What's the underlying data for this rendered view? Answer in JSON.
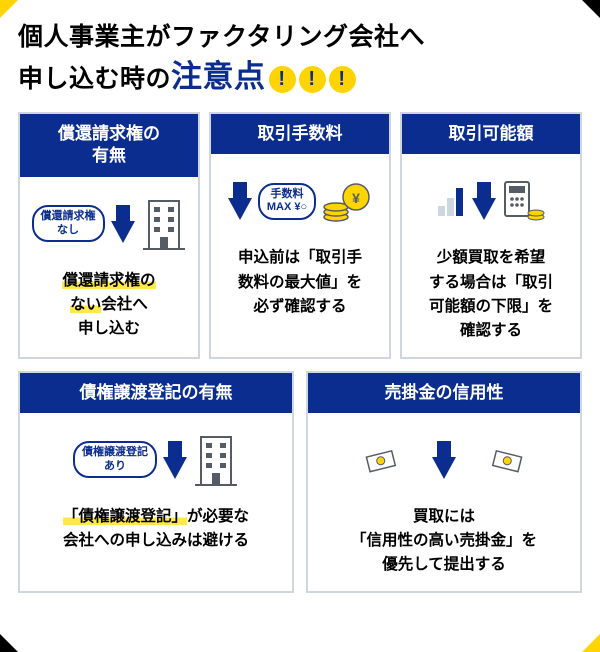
{
  "title": {
    "line1_a": "個人事業主",
    "line1_b": "がファクタリング会社へ",
    "line2_a": "申し込む時の",
    "em": "注意点"
  },
  "colors": {
    "navy": "#0a2d8f",
    "yellow": "#ffd400",
    "highlight": "#ffe94a",
    "border": "#d0d6e0",
    "icon_gray": "#555c66"
  },
  "cards_row1": [
    {
      "head": "償還請求権の\n有無",
      "badge": "償還請求権\nなし",
      "desc_parts": [
        {
          "t": "償還請求権の",
          "hl": true
        },
        {
          "t": "\n"
        },
        {
          "t": "ない",
          "hl": true
        },
        {
          "t": "会社へ\n申し込む"
        }
      ]
    },
    {
      "head": "取引手数料",
      "badge": "手数料\nMAX ¥○",
      "desc_parts": [
        {
          "t": "申込前は"
        },
        {
          "t": "「取引手",
          "q": true
        },
        {
          "t": "\n"
        },
        {
          "t": "数料の最大値」",
          "q": true
        },
        {
          "t": "を\n必ず確認する"
        }
      ]
    },
    {
      "head": "取引可能額",
      "desc_parts": [
        {
          "t": "少額買取を希望\nする場合は"
        },
        {
          "t": "「取引",
          "q": true
        },
        {
          "t": "\n"
        },
        {
          "t": "可能額の下限」",
          "q": true
        },
        {
          "t": "を\n確認する"
        }
      ]
    }
  ],
  "cards_row2": [
    {
      "head": "債権譲渡登記の有無",
      "badge": "債権譲渡登記\nあり",
      "desc_parts": [
        {
          "t": "「債権譲渡登記」",
          "q": true,
          "hl": true
        },
        {
          "t": "が必要な\n会社への申し込みは避ける"
        }
      ]
    },
    {
      "head": "売掛金の信用性",
      "desc_parts": [
        {
          "t": "買取には\n"
        },
        {
          "t": "「信用性の高い売掛金」",
          "q": true
        },
        {
          "t": "を\n優先して提出する"
        }
      ]
    }
  ]
}
